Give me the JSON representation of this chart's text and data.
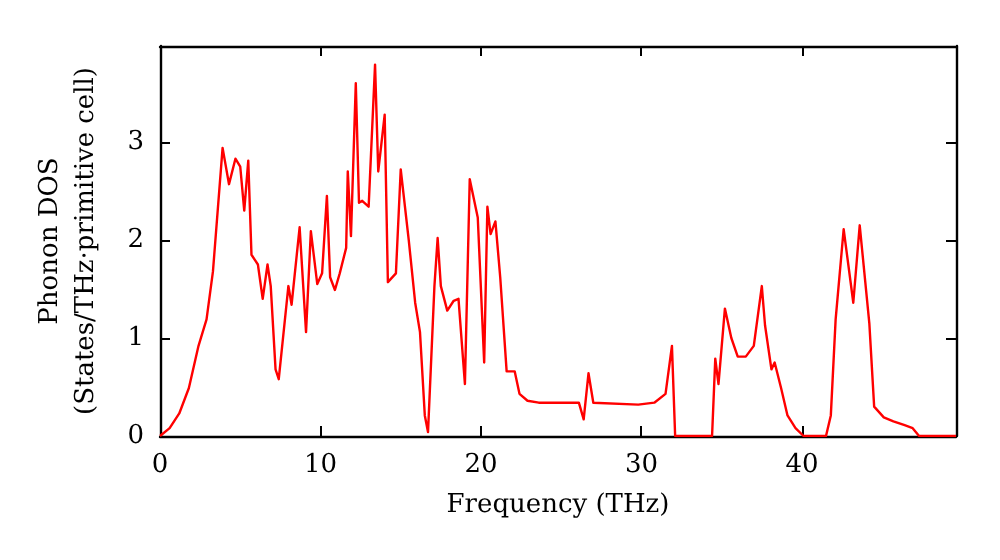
{
  "chart_data": {
    "type": "line",
    "xlabel": "Frequency (THz)",
    "ylabel": "Phonon DOS\n(States/THz·primitive cell)",
    "xlim": [
      0,
      49.6
    ],
    "ylim": [
      0,
      3.98
    ],
    "xticks": [
      0,
      10,
      20,
      30,
      40
    ],
    "yticks": [
      0,
      1,
      2,
      3
    ],
    "grid": false,
    "marker": "none",
    "line_style": "solid",
    "series": [
      {
        "color": "#ff0000",
        "x": [
          0,
          0.6,
          1.2,
          1.8,
          2.4,
          2.9,
          3.3,
          3.9,
          4.3,
          4.7,
          5.0,
          5.25,
          5.5,
          5.7,
          6.1,
          6.4,
          6.7,
          6.9,
          7.2,
          7.4,
          8.0,
          8.2,
          8.7,
          9.1,
          9.4,
          9.8,
          10.1,
          10.4,
          10.6,
          10.9,
          11.2,
          11.6,
          11.7,
          11.9,
          12.2,
          12.4,
          12.6,
          13.0,
          13.4,
          13.6,
          14.0,
          14.2,
          14.7,
          15.0,
          15.5,
          15.9,
          16.2,
          16.5,
          16.7,
          17.1,
          17.3,
          17.5,
          17.9,
          18.3,
          18.6,
          19.0,
          19.3,
          19.8,
          20.2,
          20.4,
          20.6,
          20.9,
          21.2,
          21.6,
          22.1,
          22.4,
          22.9,
          23.6,
          26.1,
          26.4,
          26.7,
          27.0,
          29.8,
          30.8,
          31.5,
          31.9,
          32.1,
          34.4,
          34.6,
          34.8,
          35.2,
          35.6,
          36.0,
          36.5,
          37.0,
          37.5,
          37.7,
          38.1,
          38.3,
          38.7,
          39.1,
          39.6,
          40.1,
          41.5,
          41.8,
          42.1,
          42.6,
          43.2,
          43.6,
          44.2,
          44.5,
          45.1,
          45.7,
          46.4,
          46.9,
          47.3,
          49.6
        ],
        "values": [
          0,
          0.08,
          0.23,
          0.49,
          0.92,
          1.19,
          1.68,
          2.94,
          2.57,
          2.83,
          2.75,
          2.3,
          2.81,
          1.85,
          1.75,
          1.4,
          1.75,
          1.53,
          0.68,
          0.58,
          1.53,
          1.34,
          2.13,
          1.06,
          2.09,
          1.55,
          1.66,
          2.45,
          1.62,
          1.49,
          1.66,
          1.92,
          2.7,
          2.04,
          3.6,
          2.38,
          2.4,
          2.34,
          3.79,
          2.7,
          3.28,
          1.57,
          1.66,
          2.72,
          2.0,
          1.36,
          1.06,
          0.21,
          0.04,
          1.53,
          2.02,
          1.53,
          1.28,
          1.38,
          1.4,
          0.53,
          2.62,
          2.23,
          0.75,
          2.34,
          2.06,
          2.19,
          1.62,
          0.66,
          0.66,
          0.43,
          0.36,
          0.34,
          0.34,
          0.17,
          0.64,
          0.34,
          0.32,
          0.34,
          0.43,
          0.92,
          0,
          0,
          0.79,
          0.53,
          1.3,
          1.0,
          0.81,
          0.81,
          0.92,
          1.53,
          1.13,
          0.68,
          0.75,
          0.49,
          0.21,
          0.08,
          0,
          0,
          0.21,
          1.19,
          2.11,
          1.36,
          2.15,
          1.15,
          0.3,
          0.19,
          0.15,
          0.11,
          0.08,
          0,
          0
        ]
      }
    ]
  }
}
